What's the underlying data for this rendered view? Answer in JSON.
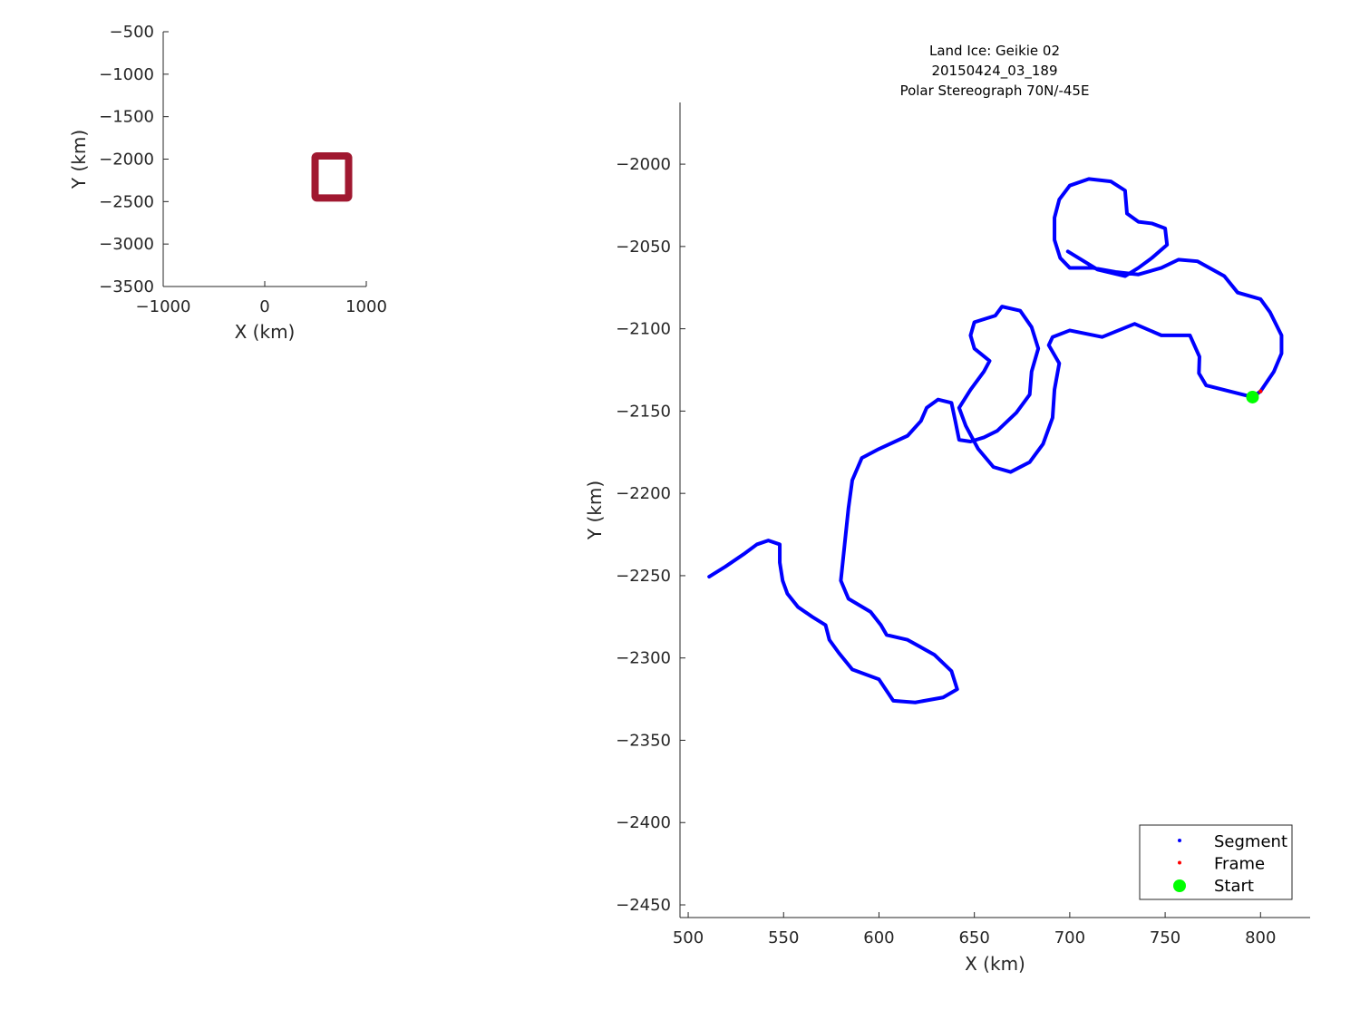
{
  "chart_data": [
    {
      "type": "line",
      "role": "overview-inset",
      "xlabel": "X (km)",
      "ylabel": "Y (km)",
      "xlim": [
        -1000,
        1000
      ],
      "ylim": [
        -3500,
        -500
      ],
      "xticks": [
        -1000,
        0,
        1000
      ],
      "xtick_labels": [
        "−1000",
        "0",
        "1000"
      ],
      "yticks": [
        -500,
        -1000,
        -1500,
        -2000,
        -2500,
        -3000,
        -3500
      ],
      "ytick_labels": [
        "−500",
        "−1000",
        "−1500",
        "−2000",
        "−2500",
        "−3000",
        "−3500"
      ],
      "grid": false,
      "extent_box": {
        "x": [
          495.7,
          826
        ],
        "y": [
          -2457.7,
          -1962.5
        ],
        "color": "#a01830"
      }
    },
    {
      "type": "scatter",
      "role": "main",
      "title": [
        "Land Ice: Geikie 02",
        "20150424_03_189",
        "Polar Stereograph 70N/-45E"
      ],
      "xlabel": "X (km)",
      "ylabel": "Y (km)",
      "xlim": [
        495.7,
        826
      ],
      "ylim": [
        -2457.7,
        -1962.5
      ],
      "xticks": [
        500,
        550,
        600,
        650,
        700,
        750,
        800
      ],
      "xtick_labels": [
        "500",
        "550",
        "600",
        "650",
        "700",
        "750",
        "800"
      ],
      "yticks": [
        -2000,
        -2050,
        -2100,
        -2150,
        -2200,
        -2250,
        -2300,
        -2350,
        -2400,
        -2450
      ],
      "ytick_labels": [
        "−2000",
        "−2050",
        "−2100",
        "−2150",
        "−2200",
        "−2250",
        "−2300",
        "−2350",
        "−2400",
        "−2450"
      ],
      "grid": false,
      "legend_position": "bottom-right",
      "series": [
        {
          "name": "Segment",
          "color": "#0000ff",
          "x": [
            699,
            714.5,
            729,
            736,
            743,
            751,
            750,
            743,
            736,
            730,
            729,
            721.6,
            710,
            700,
            694.5,
            692,
            692,
            695,
            700,
            712,
            724,
            736,
            748,
            757,
            767,
            781,
            788,
            800,
            805,
            811,
            811,
            807,
            800,
            795.8,
            771.5,
            767.7,
            768,
            763,
            748,
            734,
            717,
            700,
            691,
            689,
            694.5,
            692,
            691,
            686,
            679,
            669,
            660,
            652,
            645.5,
            642,
            648,
            655,
            658,
            650,
            648,
            650,
            661,
            664.5,
            674,
            680,
            683.5,
            680,
            679,
            672,
            662,
            655,
            648,
            642,
            640,
            638,
            631,
            625,
            622,
            615,
            600,
            591,
            586,
            584,
            582,
            580,
            584,
            595.6,
            601,
            604,
            615,
            629,
            638,
            641,
            633.6,
            619,
            607.5,
            600,
            586,
            579,
            574,
            572,
            565,
            557.5,
            552,
            549.5,
            548,
            548,
            542,
            536,
            529,
            519.5,
            511
          ],
          "y": [
            -2053,
            -2064,
            -2068,
            -2063,
            -2057,
            -2049,
            -2039,
            -2036,
            -2035,
            -2030,
            -2016,
            -2010.5,
            -2009,
            -2013,
            -2021.5,
            -2032.5,
            -2046,
            -2057,
            -2063,
            -2063,
            -2065.5,
            -2067,
            -2063,
            -2058,
            -2059,
            -2068,
            -2078,
            -2082,
            -2090,
            -2104,
            -2115,
            -2126,
            -2138,
            -2141.5,
            -2134.4,
            -2127,
            -2117,
            -2104,
            -2104,
            -2097,
            -2105,
            -2101,
            -2105,
            -2110,
            -2121,
            -2137,
            -2154,
            -2170,
            -2181,
            -2187,
            -2184,
            -2173,
            -2159,
            -2148,
            -2137,
            -2126,
            -2119.5,
            -2112,
            -2104,
            -2096,
            -2092,
            -2086.5,
            -2089,
            -2099,
            -2112,
            -2126,
            -2140,
            -2151,
            -2162,
            -2166,
            -2168.5,
            -2167.5,
            -2156,
            -2145,
            -2143,
            -2148,
            -2156,
            -2165,
            -2173,
            -2178.5,
            -2192,
            -2209,
            -2231,
            -2253,
            -2264,
            -2272,
            -2280,
            -2286,
            -2289,
            -2298,
            -2308,
            -2319,
            -2324,
            -2327,
            -2326,
            -2313,
            -2307,
            -2297,
            -2289,
            -2280,
            -2275,
            -2269,
            -2261,
            -2253,
            -2242,
            -2231,
            -2228.6,
            -2231,
            -2237,
            -2244.5,
            -2250.6
          ]
        },
        {
          "name": "Frame",
          "color": "#ff0000",
          "x": [
            798,
            800
          ],
          "y": [
            -2140,
            -2138
          ]
        },
        {
          "name": "Start",
          "color": "#00ff00",
          "x": [
            795.8
          ],
          "y": [
            -2141.5
          ]
        }
      ]
    }
  ]
}
